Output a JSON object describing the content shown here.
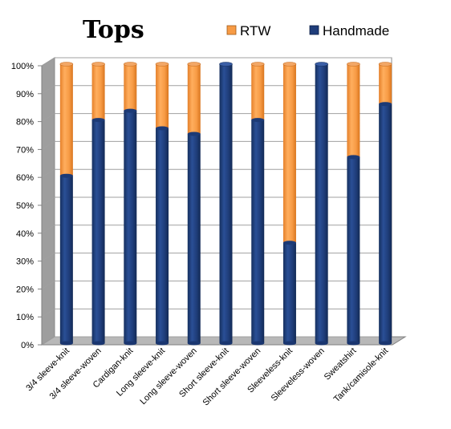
{
  "chart_data": {
    "type": "bar",
    "stacked": true,
    "normalized": true,
    "title": "Tops",
    "categories": [
      "3/4 sleeve-knit",
      "3/4 sleeve-woven",
      "Cardigan-knit",
      "Long sleeve-knit",
      "Long sleeve-woven",
      "Short sleeve-knit",
      "Short sleeve-woven",
      "Sleeveless-knit",
      "Sleeveless-woven",
      "Sweatshirt",
      "Tank/camisole-knit"
    ],
    "series": [
      {
        "name": "Handmade",
        "color": "#1F3D7A",
        "values": [
          60,
          80,
          83.3,
          77,
          75,
          100,
          80,
          36,
          100,
          66.7,
          85.7
        ]
      },
      {
        "name": "RTW",
        "color": "#F79B45",
        "values": [
          40,
          20,
          16.7,
          23,
          25,
          0,
          20,
          64,
          0,
          33.3,
          14.3
        ]
      }
    ],
    "legend_order": [
      "RTW",
      "Handmade"
    ],
    "yticks": [
      "0%",
      "10%",
      "20%",
      "30%",
      "40%",
      "50%",
      "60%",
      "70%",
      "80%",
      "90%",
      "100%"
    ],
    "ylim": [
      0,
      100
    ],
    "legend_position": "top",
    "grid": true
  }
}
